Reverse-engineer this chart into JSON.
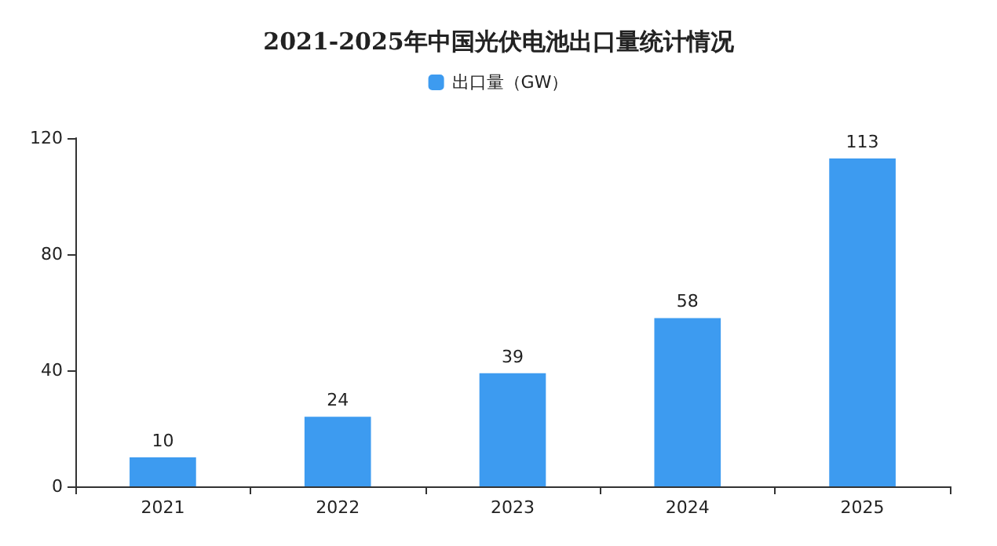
{
  "chart_data": {
    "type": "bar",
    "title": "2021-2025年中国光伏电池出口量统计情况",
    "categories": [
      "2021",
      "2022",
      "2023",
      "2024",
      "2025"
    ],
    "series": [
      {
        "name": "出口量（GW）",
        "color": "#3d9bf0",
        "values": [
          10,
          24,
          39,
          58,
          113
        ]
      }
    ],
    "ylim": [
      0,
      120
    ],
    "yticks": [
      0,
      40,
      80,
      120
    ],
    "grid": false,
    "legend": "top",
    "data_labels": true
  }
}
